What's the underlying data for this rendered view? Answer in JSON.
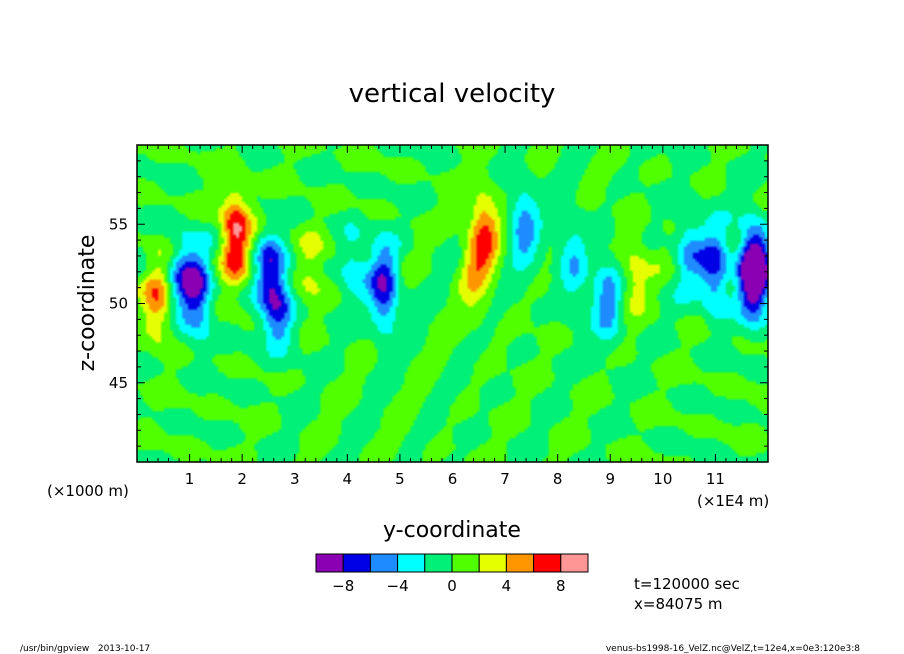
{
  "chart_data": {
    "type": "heatmap",
    "title": "vertical velocity",
    "xlabel": "y-coordinate",
    "ylabel": "z-coordinate",
    "x_unit_left": "(×1000 m)",
    "x_unit_right": "(×1E4 m)",
    "xlim": [
      0,
      12
    ],
    "ylim": [
      40,
      60
    ],
    "x_ticks": [
      "1",
      "2",
      "3",
      "4",
      "5",
      "6",
      "7",
      "8",
      "9",
      "10",
      "11"
    ],
    "x_tick_values": [
      1,
      2,
      3,
      4,
      5,
      6,
      7,
      8,
      9,
      10,
      11
    ],
    "y_ticks": [
      "45",
      "50",
      "55"
    ],
    "y_tick_values": [
      45,
      50,
      55
    ],
    "colorbar": {
      "levels": [
        -10,
        -8,
        -6,
        -4,
        -2,
        0,
        2,
        4,
        6,
        8,
        10
      ],
      "labels": [
        "−8",
        "−4",
        "0",
        "4",
        "8"
      ],
      "label_values": [
        -8,
        -4,
        0,
        4,
        8
      ],
      "colors": [
        "#8c00b4",
        "#0000e6",
        "#1e8cff",
        "#00ffff",
        "#00f078",
        "#50ff00",
        "#e6ff00",
        "#ff9600",
        "#ff0000",
        "#ff9696"
      ]
    },
    "blobs": [
      {
        "y": 0.4,
        "z": 50.0,
        "value": 5
      },
      {
        "y": 0.85,
        "z": 52.0,
        "value": -5
      },
      {
        "y": 1.15,
        "z": 50.5,
        "value": -7
      },
      {
        "y": 1.9,
        "z": 53.5,
        "value": 4
      },
      {
        "y": 1.85,
        "z": 55.0,
        "value": 5
      },
      {
        "y": 2.5,
        "z": 52.0,
        "value": -6
      },
      {
        "y": 2.7,
        "z": 49.5,
        "value": -6
      },
      {
        "y": 3.3,
        "z": 52.5,
        "value": 2.5
      },
      {
        "y": 4.1,
        "z": 52.5,
        "value": -3
      },
      {
        "y": 4.7,
        "z": 51.0,
        "value": -8
      },
      {
        "y": 6.6,
        "z": 54.5,
        "value": 6
      },
      {
        "y": 6.4,
        "z": 52.0,
        "value": 3
      },
      {
        "y": 7.35,
        "z": 55.0,
        "value": -5
      },
      {
        "y": 8.3,
        "z": 52.5,
        "value": -4
      },
      {
        "y": 8.95,
        "z": 50.0,
        "value": -5
      },
      {
        "y": 9.45,
        "z": 52.0,
        "value": 3
      },
      {
        "y": 10.5,
        "z": 53.5,
        "value": -4
      },
      {
        "y": 11.0,
        "z": 52.0,
        "value": -7
      },
      {
        "y": 11.7,
        "z": 52.5,
        "value": -6
      },
      {
        "y": 11.75,
        "z": 51.8,
        "value": -9
      }
    ]
  },
  "annotations": {
    "time": "t=120000 sec",
    "position": "x=84075 m"
  },
  "footer": {
    "left": "/usr/bin/gpview   2013-10-17",
    "right": "venus-bs1998-16_VelZ.nc@VelZ,t=12e4,x=0e3:120e3:8"
  }
}
